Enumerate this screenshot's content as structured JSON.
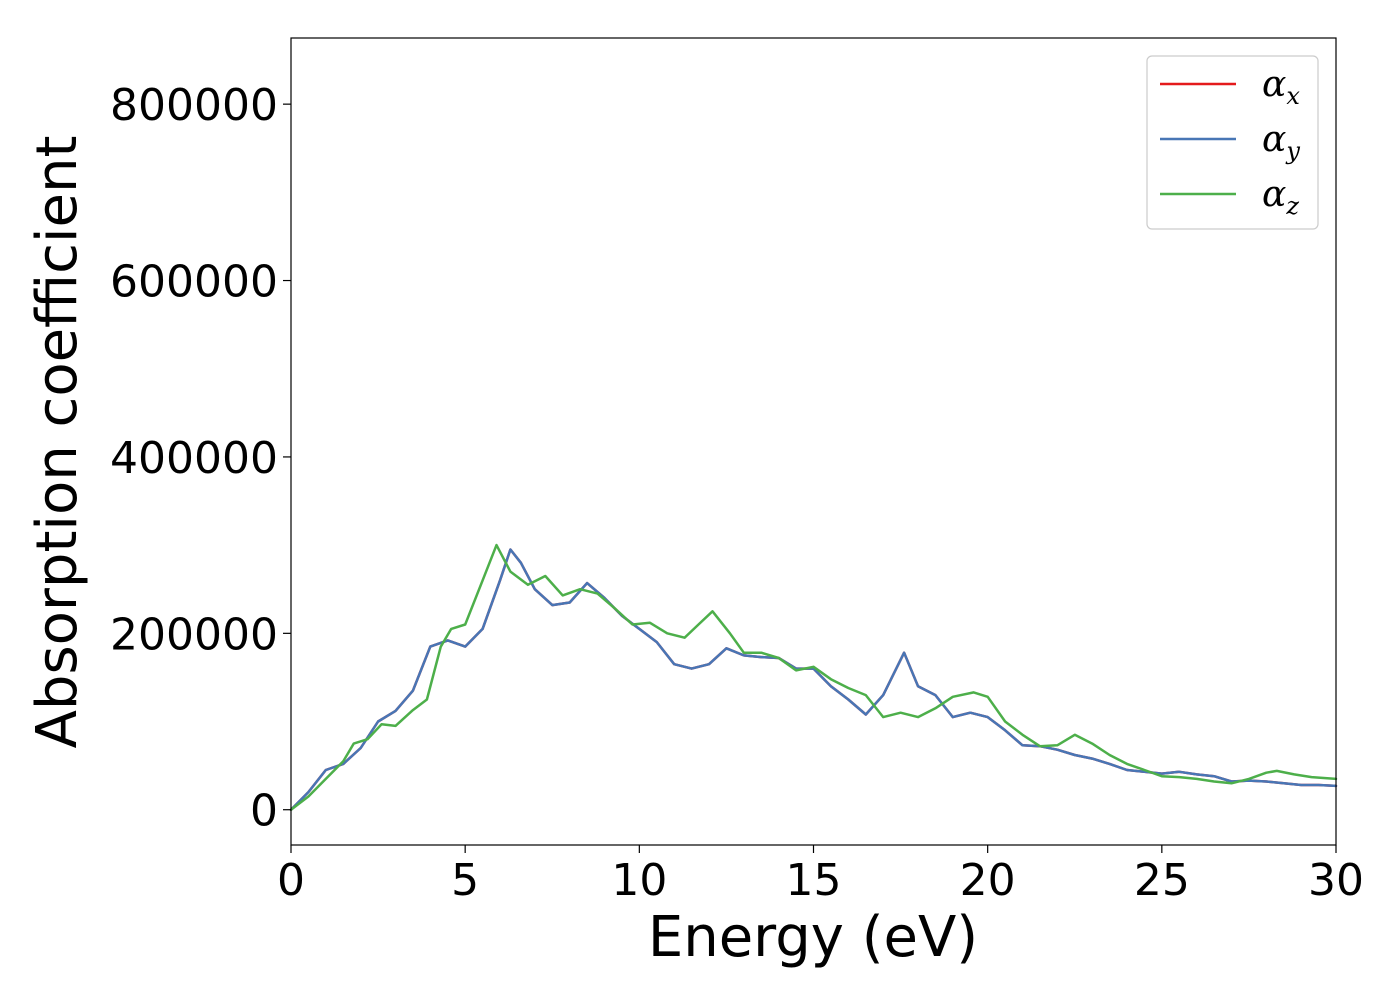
{
  "chart_data": {
    "type": "line",
    "xlabel": "Energy (eV)",
    "ylabel": "Absorption coefficient",
    "xlim": [
      0,
      30
    ],
    "ylim": [
      -40000,
      875000
    ],
    "xticks": [
      0,
      5,
      10,
      15,
      20,
      25,
      30
    ],
    "yticks": [
      0,
      200000,
      400000,
      600000,
      800000
    ],
    "grid": false,
    "legend_position": "top-right",
    "series": [
      {
        "name": "α",
        "subscript": "x",
        "color": "#e41a1c",
        "x": [
          0,
          0.5,
          1.0,
          1.5,
          2.0,
          2.5,
          3.0,
          3.5,
          4.0,
          4.5,
          5.0,
          5.5,
          6.0,
          6.3,
          6.6,
          7.0,
          7.5,
          8.0,
          8.5,
          9.0,
          9.5,
          10.0,
          10.5,
          11.0,
          11.5,
          12.0,
          12.5,
          13.0,
          13.5,
          14.0,
          14.5,
          15.0,
          15.5,
          16.0,
          16.5,
          17.0,
          17.6,
          18.0,
          18.5,
          19.0,
          19.5,
          20.0,
          20.5,
          21.0,
          21.5,
          22.0,
          22.5,
          23.0,
          23.5,
          24.0,
          24.5,
          25.0,
          25.5,
          26.0,
          26.5,
          27.0,
          27.5,
          28.0,
          28.5,
          29.0,
          29.5,
          30.0
        ],
        "y": [
          0,
          20000,
          45000,
          52000,
          70000,
          100000,
          112000,
          135000,
          185000,
          192000,
          185000,
          205000,
          260000,
          295000,
          280000,
          250000,
          232000,
          235000,
          257000,
          240000,
          220000,
          205000,
          190000,
          165000,
          160000,
          165000,
          183000,
          175000,
          173000,
          172000,
          160000,
          160000,
          140000,
          125000,
          108000,
          130000,
          178000,
          140000,
          130000,
          105000,
          110000,
          105000,
          90000,
          73000,
          72000,
          68000,
          62000,
          58000,
          52000,
          45000,
          43000,
          41000,
          43000,
          40000,
          38000,
          32000,
          33000,
          32000,
          30000,
          28000,
          28000,
          27000
        ]
      },
      {
        "name": "α",
        "subscript": "y",
        "color": "#4876b5",
        "x": [
          0,
          0.5,
          1.0,
          1.5,
          2.0,
          2.5,
          3.0,
          3.5,
          4.0,
          4.5,
          5.0,
          5.5,
          6.0,
          6.3,
          6.6,
          7.0,
          7.5,
          8.0,
          8.5,
          9.0,
          9.5,
          10.0,
          10.5,
          11.0,
          11.5,
          12.0,
          12.5,
          13.0,
          13.5,
          14.0,
          14.5,
          15.0,
          15.5,
          16.0,
          16.5,
          17.0,
          17.6,
          18.0,
          18.5,
          19.0,
          19.5,
          20.0,
          20.5,
          21.0,
          21.5,
          22.0,
          22.5,
          23.0,
          23.5,
          24.0,
          24.5,
          25.0,
          25.5,
          26.0,
          26.5,
          27.0,
          27.5,
          28.0,
          28.5,
          29.0,
          29.5,
          30.0
        ],
        "y": [
          0,
          20000,
          45000,
          52000,
          70000,
          100000,
          112000,
          135000,
          185000,
          192000,
          185000,
          205000,
          260000,
          295000,
          280000,
          250000,
          232000,
          235000,
          257000,
          240000,
          220000,
          205000,
          190000,
          165000,
          160000,
          165000,
          183000,
          175000,
          173000,
          172000,
          160000,
          160000,
          140000,
          125000,
          108000,
          130000,
          178000,
          140000,
          130000,
          105000,
          110000,
          105000,
          90000,
          73000,
          72000,
          68000,
          62000,
          58000,
          52000,
          45000,
          43000,
          41000,
          43000,
          40000,
          38000,
          32000,
          33000,
          32000,
          30000,
          28000,
          28000,
          27000
        ]
      },
      {
        "name": "α",
        "subscript": "z",
        "color": "#4daf4a",
        "x": [
          0,
          0.5,
          1.0,
          1.5,
          1.8,
          2.2,
          2.6,
          3.0,
          3.5,
          3.9,
          4.3,
          4.6,
          5.0,
          5.5,
          5.9,
          6.3,
          6.8,
          7.3,
          7.8,
          8.3,
          8.8,
          9.3,
          9.8,
          10.3,
          10.8,
          11.3,
          11.7,
          12.1,
          12.6,
          13.0,
          13.5,
          14.0,
          14.5,
          15.0,
          15.5,
          16.0,
          16.5,
          17.0,
          17.5,
          18.0,
          18.5,
          19.0,
          19.6,
          20.0,
          20.5,
          21.0,
          21.5,
          22.0,
          22.5,
          23.0,
          23.5,
          24.0,
          24.5,
          25.0,
          25.5,
          26.0,
          26.5,
          27.0,
          27.5,
          28.0,
          28.3,
          28.8,
          29.3,
          30.0
        ],
        "y": [
          0,
          15000,
          35000,
          55000,
          75000,
          80000,
          97000,
          95000,
          113000,
          125000,
          185000,
          205000,
          210000,
          260000,
          300000,
          270000,
          255000,
          265000,
          243000,
          250000,
          245000,
          228000,
          210000,
          212000,
          200000,
          195000,
          210000,
          225000,
          200000,
          178000,
          178000,
          172000,
          158000,
          162000,
          148000,
          138000,
          130000,
          105000,
          110000,
          105000,
          115000,
          128000,
          133000,
          128000,
          100000,
          85000,
          72000,
          73000,
          85000,
          75000,
          62000,
          52000,
          45000,
          38000,
          37000,
          35000,
          32000,
          30000,
          35000,
          42000,
          44000,
          40000,
          37000,
          35000
        ]
      }
    ]
  }
}
